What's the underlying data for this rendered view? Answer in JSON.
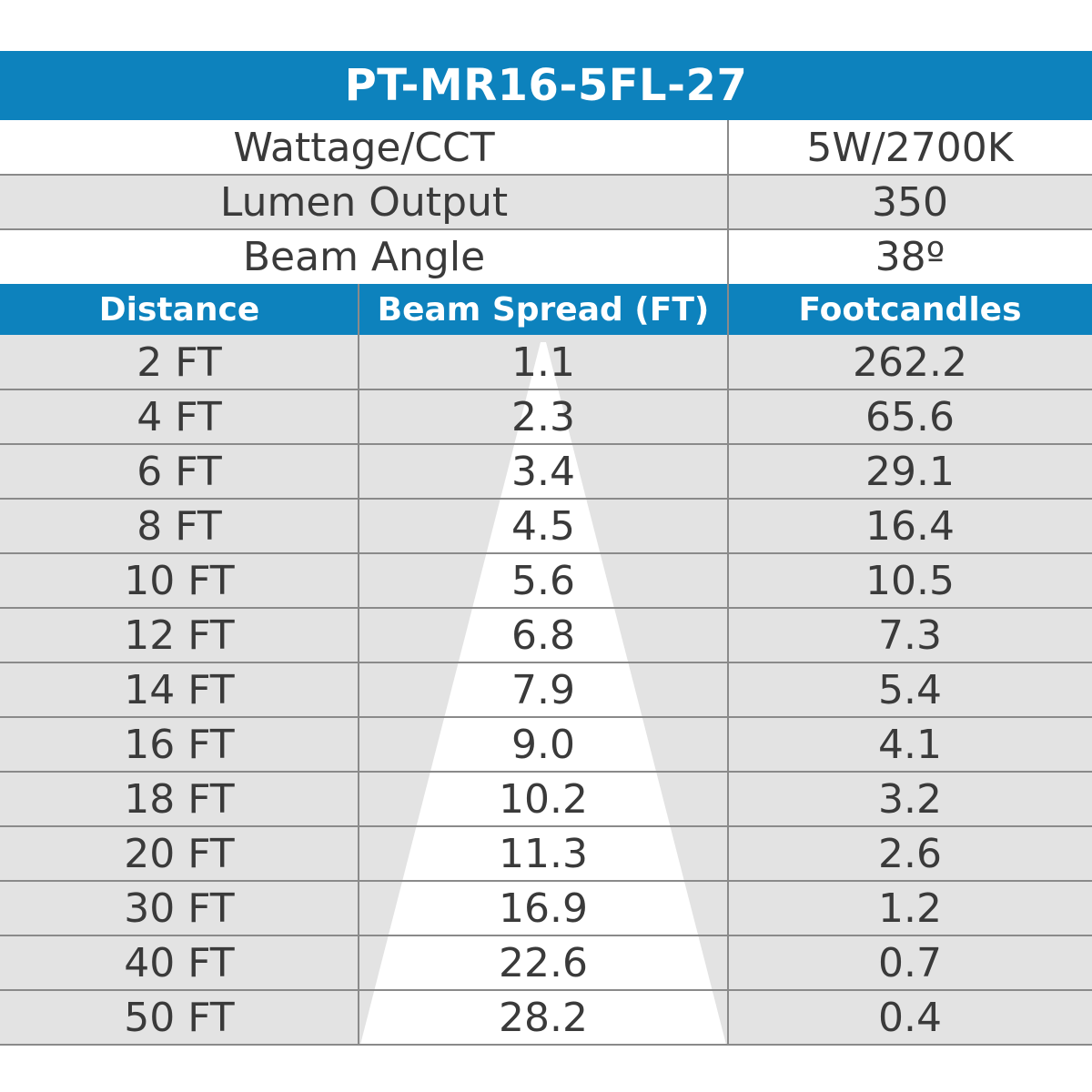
{
  "colors": {
    "header_blue": "#0d82bd",
    "row_gray": "#e3e3e3",
    "row_white": "#ffffff",
    "beam_white": "#ffffff",
    "text": "#3a3a3a"
  },
  "title": "PT-MR16-5FL-27",
  "specs": [
    {
      "label": "Wattage/CCT",
      "value": "5W/2700K"
    },
    {
      "label": "Lumen Output",
      "value": "350"
    },
    {
      "label": "Beam Angle",
      "value": "38º"
    }
  ],
  "chart_data": {
    "type": "table",
    "title": "PT-MR16-5FL-27",
    "columns": [
      "Distance",
      "Beam Spread (FT)",
      "Footcandles"
    ],
    "rows": [
      [
        "2 FT",
        "1.1",
        "262.2"
      ],
      [
        "4 FT",
        "2.3",
        "65.6"
      ],
      [
        "6 FT",
        "3.4",
        "29.1"
      ],
      [
        "8 FT",
        "4.5",
        "16.4"
      ],
      [
        "10 FT",
        "5.6",
        "10.5"
      ],
      [
        "12 FT",
        "6.8",
        "7.3"
      ],
      [
        "14 FT",
        "7.9",
        "5.4"
      ],
      [
        "16 FT",
        "9.0",
        "4.1"
      ],
      [
        "18 FT",
        "10.2",
        "3.2"
      ],
      [
        "20 FT",
        "11.3",
        "2.6"
      ],
      [
        "30 FT",
        "16.9",
        "1.2"
      ],
      [
        "40 FT",
        "22.6",
        "0.7"
      ],
      [
        "50 FT",
        "28.2",
        "0.4"
      ]
    ]
  }
}
